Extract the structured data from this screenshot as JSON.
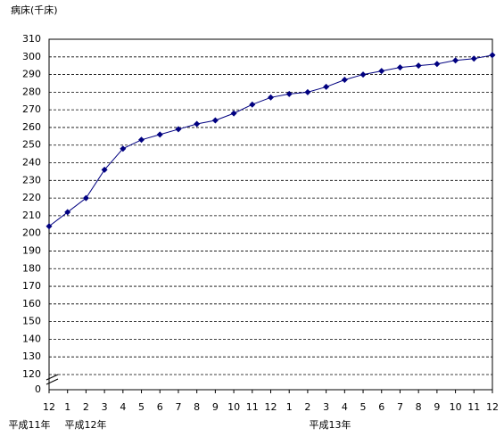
{
  "chart_data": {
    "type": "line",
    "title": "病床(千床)",
    "categories": [
      "12",
      "1",
      "2",
      "3",
      "4",
      "5",
      "6",
      "7",
      "8",
      "9",
      "10",
      "11",
      "12",
      "1",
      "2",
      "3",
      "4",
      "5",
      "6",
      "7",
      "8",
      "9",
      "10",
      "11",
      "12"
    ],
    "series": [
      {
        "color": "#000080",
        "values": [
          204,
          212,
          220,
          236,
          248,
          253,
          256,
          259,
          262,
          264,
          268,
          273,
          277,
          279,
          280,
          283,
          287,
          290,
          292,
          294,
          295,
          296,
          298,
          299,
          301
        ]
      }
    ],
    "ylim": [
      111.4,
      310
    ],
    "yticks": [
      120,
      130,
      140,
      150,
      160,
      170,
      180,
      190,
      200,
      210,
      220,
      230,
      240,
      250,
      260,
      270,
      280,
      290,
      300,
      310
    ],
    "y_origin_label": "0",
    "year_labels": [
      "平成11年",
      "平成12年",
      "平成13年"
    ],
    "grid": true
  }
}
